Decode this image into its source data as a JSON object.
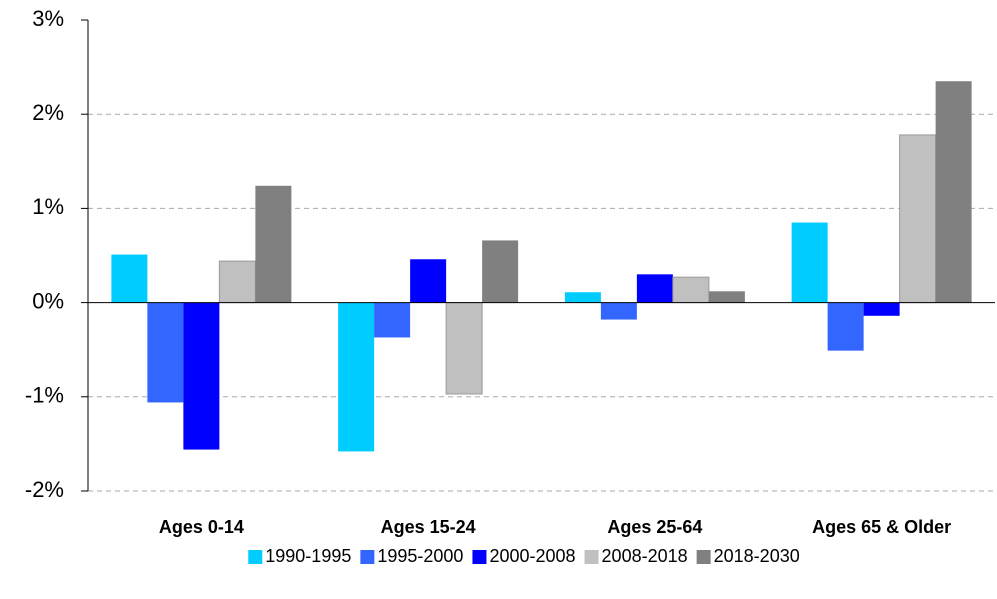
{
  "chart_data": {
    "type": "bar",
    "categories": [
      "Ages 0-14",
      "Ages 15-24",
      "Ages 25-64",
      "Ages 65 & Older"
    ],
    "series": [
      {
        "name": "1990-1995",
        "color": "#00ccff",
        "values": [
          0.51,
          -1.58,
          0.11,
          0.85
        ]
      },
      {
        "name": "1995-2000",
        "color": "#3366ff",
        "values": [
          -1.06,
          -0.37,
          -0.18,
          -0.51
        ]
      },
      {
        "name": "2000-2008",
        "color": "#0000ff",
        "values": [
          -1.56,
          0.46,
          0.3,
          -0.14
        ]
      },
      {
        "name": "2008-2018",
        "color": "#c0c0c0",
        "values": [
          0.44,
          -0.97,
          0.27,
          1.78
        ]
      },
      {
        "name": "2018-2030",
        "color": "#808080",
        "values": [
          1.24,
          0.66,
          0.12,
          2.35
        ]
      }
    ],
    "ylim": [
      -2,
      3
    ],
    "yticks": [
      {
        "value": -2,
        "label": "-2%"
      },
      {
        "value": -1,
        "label": "-1%"
      },
      {
        "value": 0,
        "label": "0%"
      },
      {
        "value": 1,
        "label": "1%"
      },
      {
        "value": 2,
        "label": "2%"
      },
      {
        "value": 3,
        "label": "3%"
      }
    ],
    "grid": true,
    "legend": "bottom"
  }
}
